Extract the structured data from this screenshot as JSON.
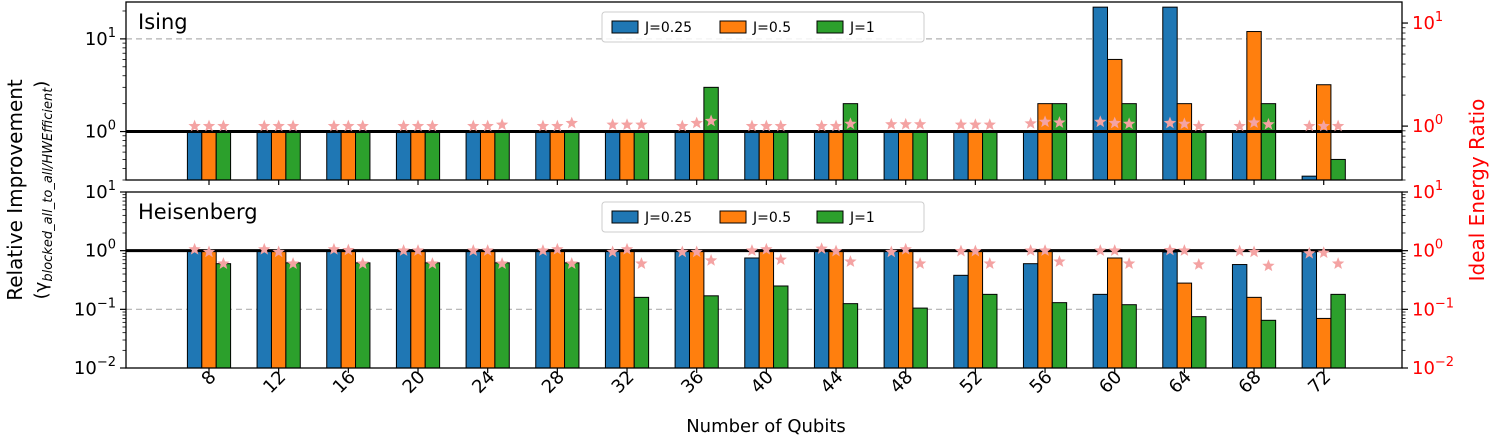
{
  "figure": {
    "xlabel": "Number of Qubits",
    "ylabel_line1": "Relative Improvement",
    "ylabel_line2": "(γ",
    "ylabel_sub": "blocked_all_to_all/HWEfficient",
    "ylabel_close": ")",
    "y2label": "Ideal Energy Ratio"
  },
  "colors": {
    "J=0.25": "#1f77b4",
    "J=0.5": "#ff7f0e",
    "J=1": "#2ca02c",
    "star": "#f4a3a3",
    "right_axis": "#ff0000"
  },
  "chart_data": [
    {
      "type": "bar",
      "title": "Ising",
      "categories": [
        "8",
        "12",
        "16",
        "20",
        "24",
        "28",
        "32",
        "36",
        "40",
        "44",
        "48",
        "52",
        "56",
        "60",
        "64",
        "68",
        "72"
      ],
      "yscale": "log",
      "ylim": [
        0.3,
        25
      ],
      "yticks": [
        {
          "value": 1,
          "base": "10",
          "exp": "0"
        },
        {
          "value": 10,
          "base": "10",
          "exp": "1"
        }
      ],
      "y2scale": "log",
      "y2lim": [
        0.3,
        16
      ],
      "y2ticks": [
        {
          "value": 1,
          "base": "10",
          "exp": "0"
        },
        {
          "value": 10,
          "base": "10",
          "exp": "1"
        }
      ],
      "reference_line": 1,
      "dashed_line": 10,
      "legend": "top-center",
      "series": [
        {
          "name": "J=0.25",
          "values": [
            1,
            1,
            1,
            1,
            1,
            1,
            1,
            1,
            1,
            1,
            1,
            1,
            1,
            22,
            22,
            1,
            0.33
          ]
        },
        {
          "name": "J=0.5",
          "values": [
            1,
            1,
            1,
            1,
            1,
            1,
            1,
            1,
            1,
            1,
            1,
            1,
            2,
            6,
            2,
            12,
            3.2
          ]
        },
        {
          "name": "J=1",
          "values": [
            1,
            1,
            1,
            1,
            1,
            1,
            1,
            3,
            1,
            2,
            1,
            1,
            2,
            2,
            1,
            2,
            0.5
          ]
        }
      ],
      "ideal_energy_ratio": [
        [
          1,
          1,
          1
        ],
        [
          1,
          1,
          1
        ],
        [
          1,
          1,
          1
        ],
        [
          1,
          1,
          1
        ],
        [
          1,
          1,
          1.03
        ],
        [
          1,
          1,
          1.07
        ],
        [
          1.03,
          1.03,
          1.03
        ],
        [
          1,
          1.07,
          1.12
        ],
        [
          1,
          1,
          1
        ],
        [
          1,
          1,
          1.05
        ],
        [
          1.04,
          1.04,
          1.04
        ],
        [
          1.03,
          1.03,
          1.03
        ],
        [
          1.06,
          1.1,
          1.08
        ],
        [
          1.1,
          1.07,
          1.05
        ],
        [
          1.07,
          1.05,
          1
        ],
        [
          1,
          1.08,
          1.04
        ],
        [
          1,
          1,
          1
        ]
      ]
    },
    {
      "type": "bar",
      "title": "Heisenberg",
      "categories": [
        "8",
        "12",
        "16",
        "20",
        "24",
        "28",
        "32",
        "36",
        "40",
        "44",
        "48",
        "52",
        "56",
        "60",
        "64",
        "68",
        "72"
      ],
      "yscale": "log",
      "ylim": [
        0.01,
        10
      ],
      "yticks": [
        {
          "value": 0.01,
          "base": "10",
          "exp": "−2"
        },
        {
          "value": 0.1,
          "base": "10",
          "exp": "−1"
        },
        {
          "value": 1,
          "base": "10",
          "exp": "0"
        },
        {
          "value": 10,
          "base": "10",
          "exp": "1"
        }
      ],
      "y2scale": "log",
      "y2lim": [
        0.01,
        10
      ],
      "y2ticks": [
        {
          "value": 0.01,
          "base": "10",
          "exp": "−2"
        },
        {
          "value": 0.1,
          "base": "10",
          "exp": "−1"
        },
        {
          "value": 1,
          "base": "10",
          "exp": "0"
        },
        {
          "value": 10,
          "base": "10",
          "exp": "1"
        }
      ],
      "reference_line": 1,
      "dashed_line": 0.1,
      "legend": "top-center",
      "series": [
        {
          "name": "J=0.25",
          "values": [
            1,
            1,
            1,
            1,
            1,
            1,
            1,
            1,
            0.75,
            1,
            1,
            0.38,
            0.6,
            0.18,
            0.95,
            0.58,
            0.95
          ]
        },
        {
          "name": "J=0.5",
          "values": [
            1,
            1,
            1,
            1,
            1,
            1,
            1,
            1,
            1,
            1,
            1,
            1,
            1,
            0.75,
            0.28,
            0.16,
            0.07
          ]
        },
        {
          "name": "J=1",
          "values": [
            0.6,
            0.62,
            0.62,
            0.62,
            0.62,
            0.62,
            0.16,
            0.17,
            0.25,
            0.125,
            0.105,
            0.18,
            0.13,
            0.12,
            0.075,
            0.065,
            0.18
          ]
        }
      ],
      "ideal_energy_ratio": [
        [
          1.05,
          0.95,
          0.6
        ],
        [
          1.05,
          0.95,
          0.6
        ],
        [
          1.05,
          1.02,
          0.6
        ],
        [
          1.0,
          1.0,
          0.6
        ],
        [
          1.0,
          1.0,
          0.6
        ],
        [
          1.0,
          1.05,
          0.6
        ],
        [
          0.95,
          1.05,
          0.6
        ],
        [
          0.95,
          0.95,
          0.68
        ],
        [
          1.0,
          1.05,
          0.7
        ],
        [
          1.08,
          0.98,
          0.65
        ],
        [
          0.95,
          1.05,
          0.6
        ],
        [
          0.98,
          0.98,
          0.6
        ],
        [
          1.0,
          1.0,
          0.65
        ],
        [
          1.0,
          1.0,
          0.6
        ],
        [
          1.02,
          1.0,
          0.58
        ],
        [
          0.98,
          0.95,
          0.55
        ],
        [
          0.9,
          0.92,
          0.6
        ]
      ]
    }
  ]
}
